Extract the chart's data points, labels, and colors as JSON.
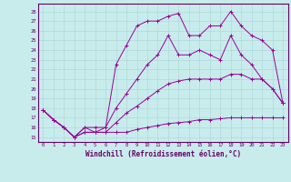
{
  "xlabel": "Windchill (Refroidissement éolien,°C)",
  "bg_color": "#c8ecec",
  "grid_color": "#b0d8d8",
  "line_color": "#990099",
  "ylim": [
    14.5,
    28.8
  ],
  "yticks": [
    15,
    16,
    17,
    18,
    19,
    20,
    21,
    22,
    23,
    24,
    25,
    26,
    27,
    28
  ],
  "xticks": [
    0,
    1,
    2,
    3,
    4,
    5,
    6,
    7,
    8,
    9,
    10,
    11,
    12,
    13,
    14,
    15,
    16,
    17,
    18,
    19,
    20,
    21,
    22,
    23
  ],
  "series": [
    [
      17.8,
      16.8,
      16.0,
      15.0,
      15.5,
      15.5,
      15.5,
      15.5,
      15.5,
      15.8,
      16.0,
      16.2,
      16.4,
      16.5,
      16.6,
      16.8,
      16.8,
      16.9,
      17.0,
      17.0,
      17.0,
      17.0,
      17.0,
      17.0
    ],
    [
      17.8,
      16.8,
      16.0,
      15.0,
      15.5,
      15.5,
      15.5,
      16.5,
      17.5,
      18.2,
      19.0,
      19.8,
      20.5,
      20.8,
      21.0,
      21.0,
      21.0,
      21.0,
      21.5,
      21.5,
      21.0,
      21.0,
      20.0,
      18.5
    ],
    [
      17.8,
      16.8,
      16.0,
      15.0,
      16.0,
      16.0,
      16.0,
      18.0,
      19.5,
      21.0,
      22.5,
      23.5,
      25.5,
      23.5,
      23.5,
      24.0,
      23.5,
      23.0,
      25.5,
      23.5,
      22.5,
      21.0,
      20.0,
      18.5
    ],
    [
      17.8,
      16.8,
      16.0,
      15.0,
      16.0,
      15.5,
      16.0,
      22.5,
      24.5,
      26.5,
      27.0,
      27.0,
      27.5,
      27.8,
      25.5,
      25.5,
      26.5,
      26.5,
      28.0,
      26.5,
      25.5,
      25.0,
      24.0,
      18.5
    ]
  ]
}
